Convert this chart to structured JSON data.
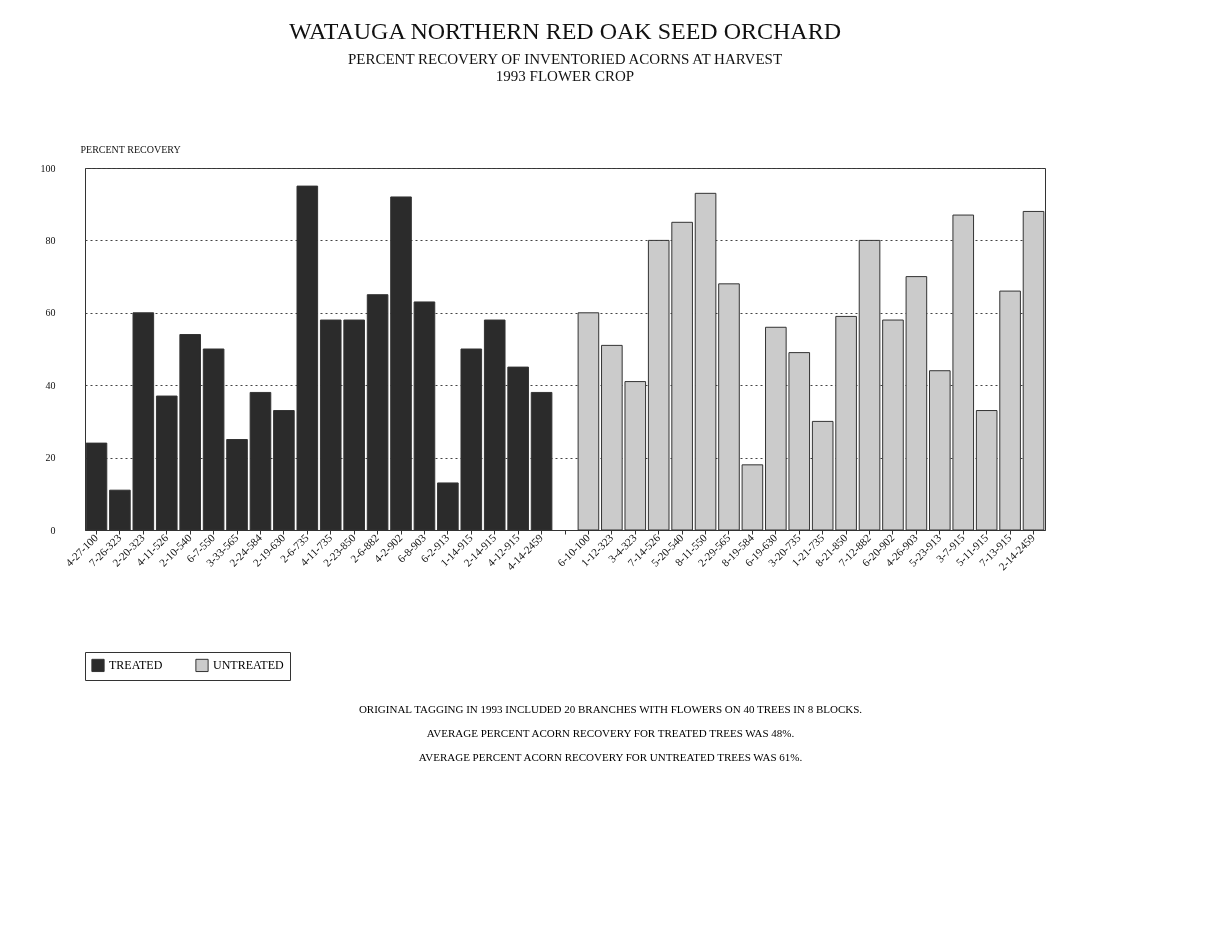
{
  "chart_data": {
    "type": "bar",
    "title": "WATAUGA NORTHERN RED OAK SEED ORCHARD",
    "subtitle": "PERCENT RECOVERY OF INVENTORIED ACORNS AT HARVEST\n1993 FLOWER CROP",
    "ylabel": "PERCENT RECOVERY",
    "categories": [
      "4-27-100",
      "7-26-323",
      "2-20-323",
      "4-11-526",
      "2-10-540",
      "6-7-550",
      "3-33-565",
      "2-24-584",
      "2-19-630",
      "2-6-735",
      "4-11-735",
      "2-23-850",
      "2-6-882",
      "4-2-902",
      "6-8-903",
      "6-2-913",
      "1-14-915",
      "2-14-915",
      "4-12-915",
      "4-14-2459",
      null,
      "6-10-100",
      "1-12-323",
      "3-4-323",
      "7-14-526",
      "5-20-540",
      "8-11-550",
      "2-29-565",
      "8-19-584",
      "6-19-630",
      "3-20-735",
      "1-21-735",
      "8-21-850",
      "7-12-882",
      "6-20-902",
      "4-26-903",
      "5-23-913",
      "3-7-915",
      "5-11-915",
      "7-13-915",
      "2-14-2459"
    ],
    "series": [
      {
        "name": "TREATED",
        "color": "#2b2b2b",
        "values": [
          24,
          11,
          60,
          37,
          54,
          50,
          25,
          38,
          33,
          95,
          58,
          58,
          65,
          92,
          63,
          13,
          50,
          58,
          45,
          38,
          null,
          null,
          null,
          null,
          null,
          null,
          null,
          null,
          null,
          null,
          null,
          null,
          null,
          null,
          null,
          null,
          null,
          null,
          null,
          null,
          null
        ]
      },
      {
        "name": "UNTREATED",
        "color": "#cbcbcb",
        "values": [
          null,
          null,
          null,
          null,
          null,
          null,
          null,
          null,
          null,
          null,
          null,
          null,
          null,
          null,
          null,
          null,
          null,
          null,
          null,
          null,
          null,
          60,
          51,
          41,
          80,
          85,
          93,
          68,
          18,
          56,
          49,
          30,
          59,
          80,
          58,
          70,
          44,
          87,
          33,
          66,
          88
        ]
      }
    ],
    "ylim": [
      0,
      100
    ],
    "yticks": [
      0,
      20,
      40,
      60,
      80,
      100
    ],
    "grid": "y",
    "legend": "bottom",
    "annotations": [
      "ORIGINAL TAGGING IN 1993 INCLUDED 20 BRANCHES WITH FLOWERS ON 40 TREES IN 8 BLOCKS.",
      "AVERAGE PERCENT ACORN RECOVERY FOR TREATED TREES WAS 48%.",
      "AVERAGE PERCENT ACORN RECOVERY FOR UNTREATED TREES WAS 61%."
    ]
  }
}
